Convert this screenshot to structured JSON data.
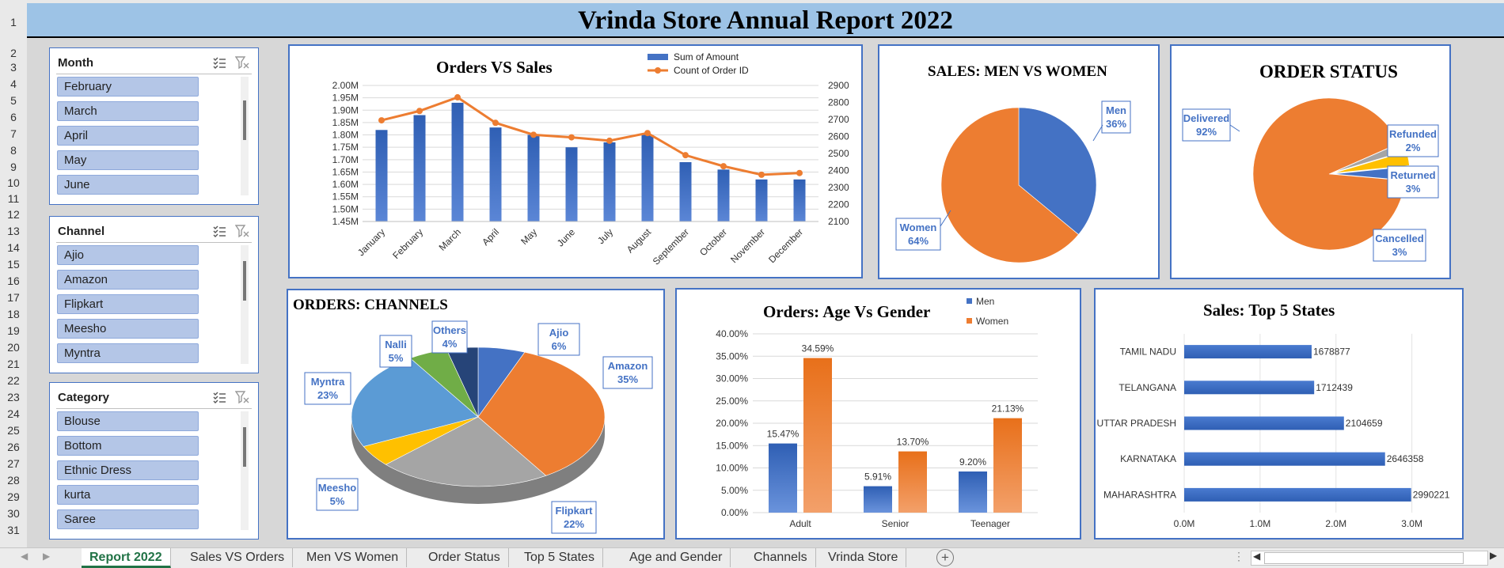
{
  "report_title": "Vrinda Store Annual Report 2022",
  "row_numbers": [
    "1",
    "2",
    "3",
    "4",
    "5",
    "6",
    "7",
    "8",
    "9",
    "10",
    "11",
    "12",
    "13",
    "14",
    "15",
    "16",
    "17",
    "18",
    "19",
    "20",
    "21",
    "22",
    "23",
    "24",
    "25",
    "26",
    "27",
    "28",
    "29",
    "30",
    "31"
  ],
  "slicers": [
    {
      "title": "Month",
      "items": [
        "February",
        "March",
        "April",
        "May",
        "June"
      ]
    },
    {
      "title": "Channel",
      "items": [
        "Ajio",
        "Amazon",
        "Flipkart",
        "Meesho",
        "Myntra"
      ]
    },
    {
      "title": "Category",
      "items": [
        "Blouse",
        "Bottom",
        "Ethnic Dress",
        "kurta",
        "Saree"
      ]
    }
  ],
  "icons": {
    "multiselect": "multi-select-icon",
    "clearfilter": "clear-filter-icon",
    "newsheet": "add-sheet-icon"
  },
  "colors": {
    "blue": "#4472c4",
    "orange": "#ed7d31",
    "gray": "#a5a5a5",
    "yellow": "#ffc000",
    "lightblue": "#5b9bd5",
    "green": "#70ad47",
    "darknavy": "#264478",
    "title_band": "#9dc3e6",
    "active_tab": "#217346"
  },
  "tabs": [
    "Report 2022",
    "Sales VS Orders",
    "Men VS Women",
    "Order Status",
    "Top 5 States",
    "Age and Gender",
    "Channels",
    "Vrinda Store"
  ],
  "chart_data": [
    {
      "id": "orders-vs-sales",
      "type": "bar",
      "title": "Orders VS Sales",
      "categories": [
        "January",
        "February",
        "March",
        "April",
        "May",
        "June",
        "July",
        "August",
        "September",
        "October",
        "November",
        "December"
      ],
      "series": [
        {
          "name": "Sum of Amount",
          "type": "bar",
          "values": [
            1.82,
            1.88,
            1.93,
            1.83,
            1.8,
            1.75,
            1.77,
            1.8,
            1.69,
            1.66,
            1.62,
            1.62
          ]
        },
        {
          "name": "Count of Order ID",
          "type": "line",
          "values": [
            2695,
            2750,
            2830,
            2680,
            2610,
            2595,
            2575,
            2620,
            2490,
            2425,
            2375,
            2385
          ]
        }
      ],
      "yticks_left": [
        "2.00M",
        "1.95M",
        "1.90M",
        "1.85M",
        "1.80M",
        "1.75M",
        "1.70M",
        "1.65M",
        "1.60M",
        "1.55M",
        "1.50M",
        "1.45M"
      ],
      "yticks_right": [
        "2900",
        "2800",
        "2700",
        "2600",
        "2500",
        "2400",
        "2300",
        "2200",
        "2100"
      ],
      "ylim_left": [
        1.45,
        2.0
      ],
      "ylim_right": [
        2100,
        2900
      ],
      "legend": "top-right"
    },
    {
      "id": "men-vs-women",
      "type": "pie",
      "title": "SALES: MEN VS WOMEN",
      "labels": [
        "Men",
        "Women"
      ],
      "values": [
        36,
        64
      ],
      "data_labels": [
        "36%",
        "64%"
      ]
    },
    {
      "id": "order-status",
      "type": "pie",
      "title": "ORDER STATUS",
      "labels": [
        "Delivered",
        "Refunded",
        "Returned",
        "Cancelled"
      ],
      "values": [
        92,
        2,
        3,
        3
      ],
      "data_labels": [
        "92%",
        "2%",
        "3%",
        "3%"
      ]
    },
    {
      "id": "orders-channels",
      "type": "pie",
      "title": "ORDERS: CHANNELS",
      "labels": [
        "Ajio",
        "Amazon",
        "Flipkart",
        "Meesho",
        "Myntra",
        "Nalli",
        "Others"
      ],
      "values": [
        6,
        35,
        22,
        5,
        23,
        5,
        4
      ],
      "data_labels": [
        "6%",
        "35%",
        "22%",
        "5%",
        "23%",
        "5%",
        "4%"
      ]
    },
    {
      "id": "age-vs-gender",
      "type": "bar",
      "title": "Orders: Age Vs Gender",
      "categories": [
        "Adult",
        "Senior",
        "Teenager"
      ],
      "series": [
        {
          "name": "Men",
          "values": [
            15.47,
            5.91,
            9.2
          ]
        },
        {
          "name": "Women",
          "values": [
            34.59,
            13.7,
            21.13
          ]
        }
      ],
      "value_labels": [
        [
          "15.47%",
          "5.91%",
          "9.20%"
        ],
        [
          "34.59%",
          "13.70%",
          "21.13%"
        ]
      ],
      "yticks": [
        "40.00%",
        "35.00%",
        "30.00%",
        "25.00%",
        "20.00%",
        "15.00%",
        "10.00%",
        "5.00%",
        "0.00%"
      ],
      "ylim": [
        0,
        40
      ],
      "legend": "top-right"
    },
    {
      "id": "top-5-states",
      "type": "bar",
      "title": "Sales: Top 5 States",
      "categories": [
        "TAMIL NADU",
        "TELANGANA",
        "UTTAR PRADESH",
        "KARNATAKA",
        "MAHARASHTRA"
      ],
      "values": [
        1678877,
        1712439,
        2104659,
        2646358,
        2990221
      ],
      "value_labels": [
        "1678877",
        "1712439",
        "2104659",
        "2646358",
        "2990221"
      ],
      "xticks": [
        "0.0M",
        "1.0M",
        "2.0M",
        "3.0M"
      ],
      "xlim": [
        0,
        3400000
      ]
    }
  ]
}
